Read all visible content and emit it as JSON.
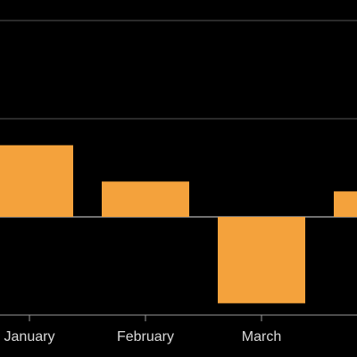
{
  "chart_data": {
    "type": "bar",
    "categories": [
      "January",
      "February",
      "March",
      null
    ],
    "values": [
      0.73,
      0.36,
      -0.88,
      0.26
    ],
    "color": "#f4a23c",
    "ylim": [
      -1,
      2.2
    ],
    "yticks": [
      -1,
      0,
      1,
      2
    ],
    "grid": true
  }
}
